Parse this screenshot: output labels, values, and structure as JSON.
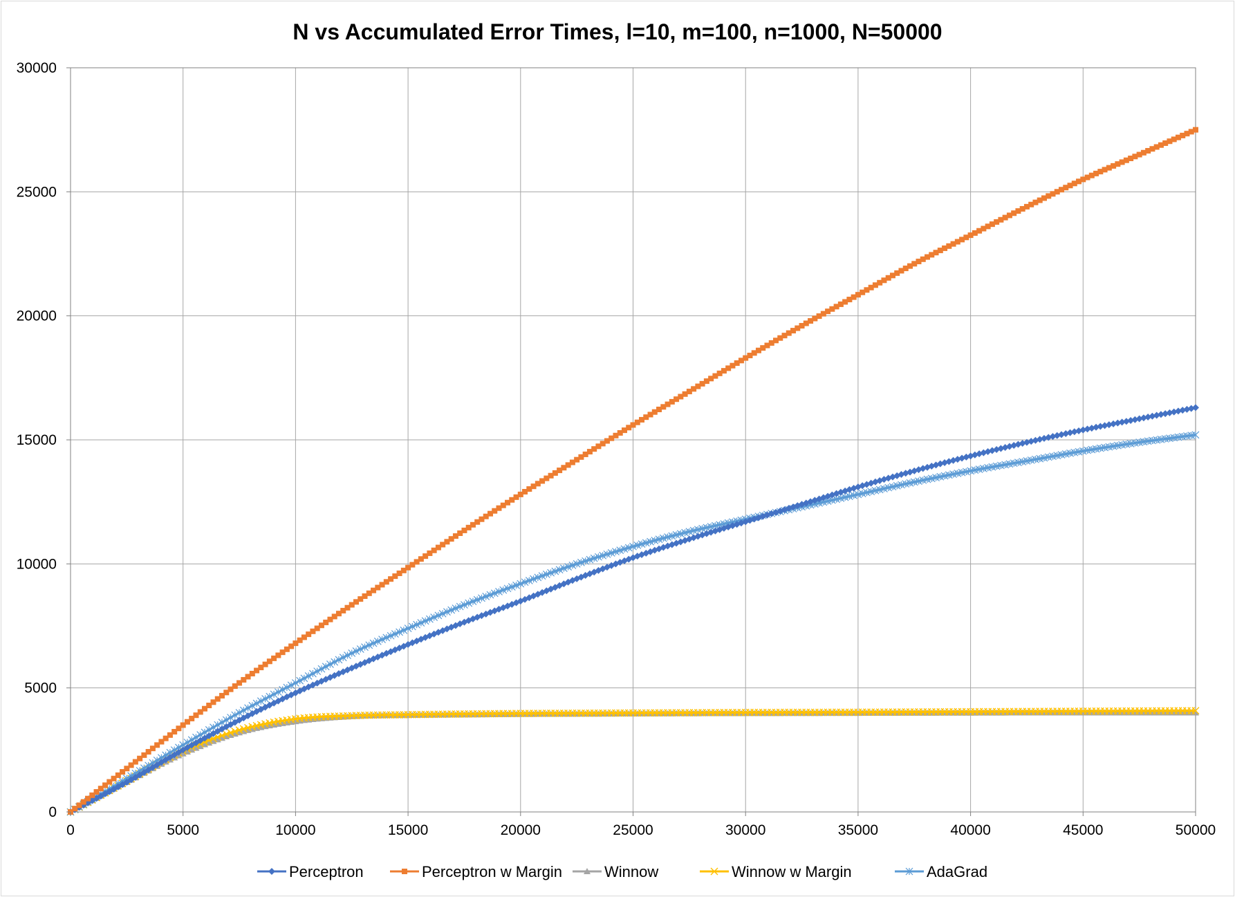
{
  "chart_data": {
    "type": "line",
    "title": "N vs Accumulated Error Times, l=10, m=100, n=1000, N=50000",
    "xlabel": "",
    "ylabel": "",
    "xlim": [
      0,
      50000
    ],
    "ylim": [
      0,
      30000
    ],
    "xticks": [
      "0",
      "5000",
      "10000",
      "15000",
      "20000",
      "25000",
      "30000",
      "35000",
      "40000",
      "45000",
      "50000"
    ],
    "yticks": [
      "0",
      "5000",
      "10000",
      "15000",
      "20000",
      "25000",
      "30000"
    ],
    "grid": true,
    "legend_position": "bottom",
    "x": [
      0,
      2500,
      5000,
      7500,
      10000,
      12500,
      15000,
      17500,
      20000,
      22500,
      25000,
      27500,
      30000,
      32500,
      35000,
      37500,
      40000,
      42500,
      45000,
      47500,
      50000
    ],
    "series": [
      {
        "name": "Perceptron",
        "color": "#4472c4",
        "marker": "diamond",
        "values": [
          0,
          1200,
          2500,
          3700,
          4800,
          5800,
          6750,
          7650,
          8500,
          9400,
          10250,
          11000,
          11700,
          12400,
          13100,
          13750,
          14350,
          14900,
          15400,
          15850,
          16300
        ]
      },
      {
        "name": "Perceptron w Margin",
        "color": "#ed7d31",
        "marker": "square",
        "values": [
          0,
          1750,
          3500,
          5200,
          6800,
          8350,
          9850,
          11350,
          12800,
          14200,
          15600,
          16950,
          18300,
          19600,
          20850,
          22100,
          23250,
          24400,
          25500,
          26500,
          27500
        ]
      },
      {
        "name": "Winnow",
        "color": "#a5a5a5",
        "marker": "triangle",
        "values": [
          0,
          1200,
          2350,
          3200,
          3650,
          3850,
          3900,
          3920,
          3940,
          3950,
          3960,
          3970,
          3975,
          3980,
          3985,
          3990,
          3995,
          4000,
          4000,
          4000,
          4000
        ]
      },
      {
        "name": "Winnow w Margin",
        "color": "#ffc000",
        "marker": "x",
        "values": [
          0,
          1250,
          2450,
          3300,
          3750,
          3880,
          3920,
          3950,
          3970,
          3980,
          3990,
          4000,
          4010,
          4015,
          4020,
          4030,
          4040,
          4050,
          4060,
          4070,
          4080
        ]
      },
      {
        "name": "AdaGrad",
        "color": "#5b9bd5",
        "marker": "asterisk",
        "values": [
          0,
          1350,
          2700,
          4000,
          5200,
          6400,
          7400,
          8350,
          9200,
          10000,
          10700,
          11300,
          11800,
          12300,
          12800,
          13300,
          13750,
          14150,
          14550,
          14900,
          15200
        ]
      }
    ]
  }
}
